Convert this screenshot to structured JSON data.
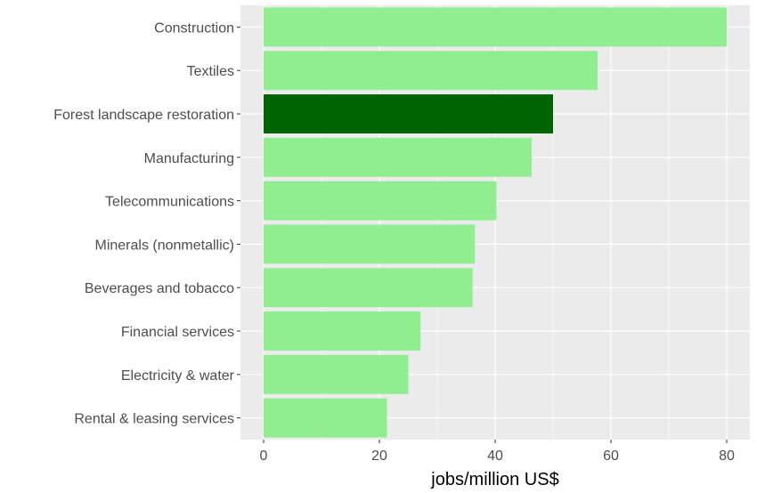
{
  "chart_data": {
    "type": "bar",
    "orientation": "horizontal",
    "categories": [
      "Construction",
      "Textiles",
      "Forest landscape restoration",
      "Manufacturing",
      "Telecommunications",
      "Minerals (nonmetallic)",
      "Beverages and tobacco",
      "Financial services",
      "Electricity & water",
      "Rental & leasing services"
    ],
    "values": [
      80,
      57.7,
      50,
      46.3,
      40.2,
      36.5,
      36.1,
      27.1,
      25,
      21.3
    ],
    "highlight": "Forest landscape restoration",
    "colors": {
      "default_bar": "#90ee90",
      "highlight_bar": "#006400",
      "panel_background": "#ebebeb",
      "grid": "#ffffff"
    },
    "xlabel": "jobs/million US$",
    "ylabel": "",
    "title": "",
    "xlim": [
      -4.0,
      84.0
    ],
    "xticks": [
      0,
      20,
      40,
      60,
      80
    ],
    "grid": true,
    "legend": "none"
  }
}
